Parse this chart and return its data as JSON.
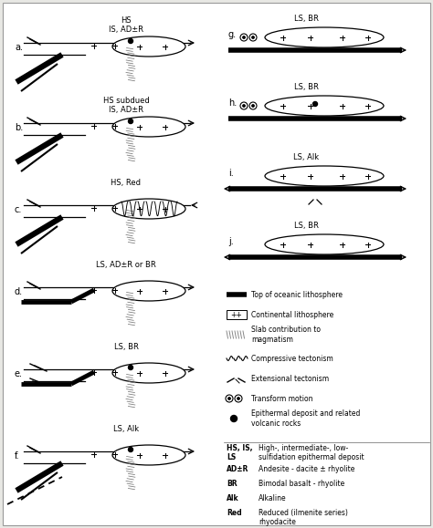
{
  "background_color": "#e8e8e4",
  "border_color": "#aaaaaa",
  "panel_bg": "white",
  "text_color": "black",
  "panels_left": [
    {
      "label": "a.",
      "title": "HS\nIS, AD±R",
      "type": "subduct_hs",
      "arrow": "right",
      "dot": true,
      "compress": false
    },
    {
      "label": "b.",
      "title": "HS subdued\nIS, AD±R",
      "type": "subduct_hs_subdued",
      "arrow": "right",
      "dot": true,
      "compress": false
    },
    {
      "label": "c.",
      "title": "HS, Red",
      "type": "subduct_hs_red",
      "arrow": "left",
      "dot": false,
      "compress": true
    },
    {
      "label": "d.",
      "title": "LS, AD±R or BR",
      "type": "subduct_ls_flat",
      "arrow": "right",
      "dot": false,
      "compress": false
    },
    {
      "label": "e.",
      "title": "LS, BR",
      "type": "subduct_ls_flat_dot",
      "arrow": "right",
      "dot": true,
      "compress": false
    },
    {
      "label": "f.",
      "title": "LS, Alk",
      "type": "subduct_ls_alk",
      "arrow": "right",
      "dot": true,
      "compress": false
    }
  ],
  "panels_right": [
    {
      "label": "g.",
      "title": "LS, BR",
      "type": "oceanic_flat"
    },
    {
      "label": "h.",
      "title": "LS, BR",
      "type": "oceanic_flat_dot"
    },
    {
      "label": "i.",
      "title": "LS, Alk",
      "type": "oceanic_bidir"
    },
    {
      "label": "j.",
      "title": "LS, BR",
      "type": "oceanic_bidir2"
    }
  ],
  "legend_symbols": [
    "Top of oceanic lithosphere",
    "Continental lithosphere",
    "Slab contribution to\nmagmatism",
    "Compressive tectonism",
    "Extensional tectonism",
    "Transform motion",
    "Epithermal deposit and related\nvolcanic rocks"
  ],
  "legend_abbrev": [
    {
      "key": "HS, IS,\nLS",
      "val": "High-, intermediate-, low-\nsulfidation epithermal deposit"
    },
    {
      "key": "AD±R",
      "val": "Andesite - dacite ± rhyolite"
    },
    {
      "key": "BR",
      "val": "Bimodal basalt - rhyolite"
    },
    {
      "key": "Alk",
      "val": "Alkaline"
    },
    {
      "key": "Red",
      "val": "Reduced (ilmenite series)\nrhyodacite"
    }
  ]
}
